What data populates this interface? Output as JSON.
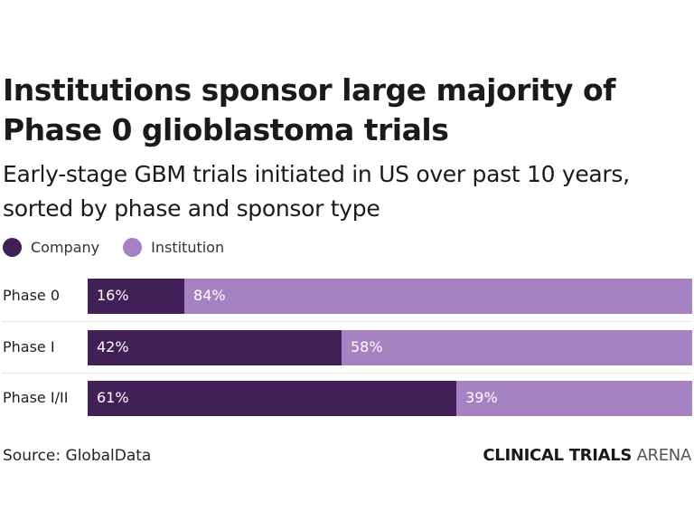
{
  "chart_data": {
    "type": "bar",
    "orientation": "horizontal",
    "stacked": true,
    "title": "Institutions sponsor large majority of Phase 0 glioblastoma trials",
    "subtitle": "Early-stage GBM trials initiated in US over past 10 years, sorted by phase and sponsor type",
    "categories": [
      "Phase 0",
      "Phase I",
      "Phase I/II"
    ],
    "series": [
      {
        "name": "Company",
        "values": [
          16,
          42,
          61
        ],
        "labels": [
          "16%",
          "42%",
          "61%"
        ],
        "color": "#412057"
      },
      {
        "name": "Institution",
        "values": [
          84,
          58,
          39
        ],
        "labels": [
          "84%",
          "58%",
          "39%"
        ],
        "color": "#a782c3"
      }
    ],
    "xlim": [
      0,
      100
    ],
    "grid": false,
    "legend": "top-left"
  },
  "source": "Source: GlobalData",
  "logo": {
    "bold": "CLINICAL TRIALS",
    "light": "ARENA"
  }
}
